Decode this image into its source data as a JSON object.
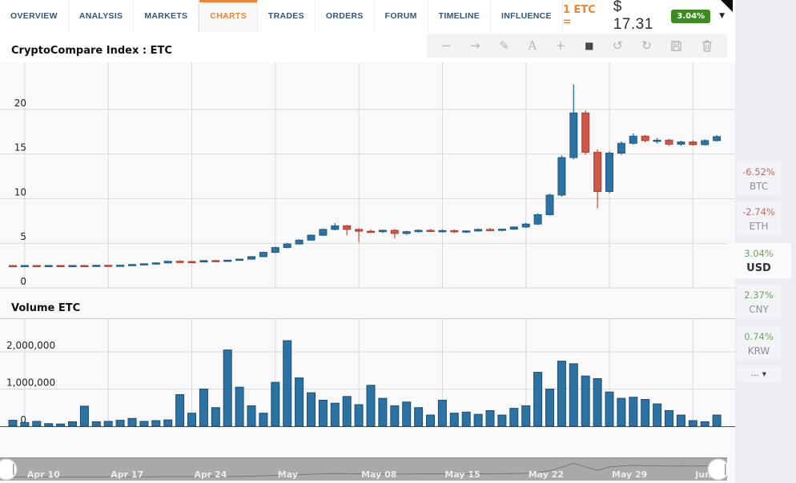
{
  "nav": {
    "tabs": [
      {
        "label": "OVERVIEW",
        "active": false
      },
      {
        "label": "ANALYSIS",
        "active": false
      },
      {
        "label": "MARKETS",
        "active": false
      },
      {
        "label": "CHARTS",
        "active": true
      },
      {
        "label": "TRADES",
        "active": false
      },
      {
        "label": "ORDERS",
        "active": false
      },
      {
        "label": "FORUM",
        "active": false
      },
      {
        "label": "TIMELINE",
        "active": false
      },
      {
        "label": "INFLUENCE",
        "active": false
      }
    ],
    "price_prefix": "1 ETC =",
    "price_value": "$ 17.31",
    "change_badge": "3.04%",
    "accent_color": "#ef8432",
    "badge_color": "#3e8b1f"
  },
  "toolbar": {
    "icons": [
      "minus",
      "arrow-right",
      "pencil",
      "text",
      "plus",
      "square",
      "undo",
      "redo",
      "save",
      "trash"
    ]
  },
  "sidebar": {
    "items": [
      {
        "change": "-6.52%",
        "symbol": "BTC",
        "direction": "down",
        "selected": false
      },
      {
        "change": "-2.74%",
        "symbol": "ETH",
        "direction": "down",
        "selected": false
      },
      {
        "change": "3.04%",
        "symbol": "USD",
        "direction": "up",
        "selected": true
      },
      {
        "change": "2.37%",
        "symbol": "CNY",
        "direction": "up",
        "selected": false
      },
      {
        "change": "0.74%",
        "symbol": "KRW",
        "direction": "up",
        "selected": false
      }
    ],
    "more_label": "...",
    "up_color": "#74a05a",
    "down_color": "#bd6a6a"
  },
  "chart_data": [
    {
      "type": "candlestick",
      "title": "CryptoCompare Index : ETC",
      "ylabel": "",
      "ylim": [
        0,
        24.6
      ],
      "y_ticks": [
        0,
        5,
        10,
        15,
        20
      ],
      "y_tick_labels": [
        "0",
        "5",
        "10",
        "15",
        "20"
      ],
      "x_tick_labels": [
        "Apr 10",
        "Apr 17",
        "Apr 24",
        "May",
        "May 08",
        "May 15",
        "May 22",
        "May 29",
        "Jun"
      ],
      "week_indices": [
        1,
        8,
        15,
        22,
        29,
        36,
        43,
        50,
        57
      ],
      "grid": true,
      "up_color": "#2c73a4",
      "down_color": "#d0564a",
      "ohlc": [
        [
          2.5,
          2.56,
          2.42,
          2.46
        ],
        [
          2.46,
          2.53,
          2.4,
          2.51
        ],
        [
          2.51,
          2.56,
          2.44,
          2.47
        ],
        [
          2.47,
          2.53,
          2.42,
          2.51
        ],
        [
          2.51,
          2.55,
          2.44,
          2.48
        ],
        [
          2.48,
          2.53,
          2.42,
          2.51
        ],
        [
          2.51,
          2.57,
          2.45,
          2.48
        ],
        [
          2.48,
          2.55,
          2.44,
          2.53
        ],
        [
          2.53,
          2.58,
          2.46,
          2.49
        ],
        [
          2.49,
          2.56,
          2.44,
          2.54
        ],
        [
          2.54,
          2.66,
          2.5,
          2.62
        ],
        [
          2.62,
          2.74,
          2.58,
          2.7
        ],
        [
          2.7,
          2.84,
          2.66,
          2.8
        ],
        [
          2.8,
          3.02,
          2.76,
          2.98
        ],
        [
          2.98,
          3.1,
          2.88,
          2.95
        ],
        [
          2.95,
          3.04,
          2.84,
          2.9
        ],
        [
          2.9,
          3.12,
          2.86,
          3.06
        ],
        [
          3.06,
          3.16,
          2.96,
          3.02
        ],
        [
          3.02,
          3.14,
          2.96,
          3.1
        ],
        [
          3.1,
          3.28,
          3.04,
          3.22
        ],
        [
          3.22,
          3.55,
          3.16,
          3.5
        ],
        [
          3.5,
          4.05,
          3.44,
          3.98
        ],
        [
          3.98,
          4.6,
          3.9,
          4.52
        ],
        [
          4.52,
          5.05,
          4.45,
          4.92
        ],
        [
          4.92,
          5.45,
          4.85,
          5.35
        ],
        [
          5.35,
          6.0,
          5.28,
          5.9
        ],
        [
          5.9,
          6.65,
          5.82,
          6.55
        ],
        [
          6.55,
          7.25,
          6.45,
          6.95
        ],
        [
          6.95,
          7.05,
          5.9,
          6.55
        ],
        [
          6.55,
          6.7,
          5.1,
          6.35
        ],
        [
          6.35,
          6.55,
          6.2,
          6.3
        ],
        [
          6.3,
          6.52,
          6.15,
          6.45
        ],
        [
          6.45,
          6.6,
          5.55,
          6.1
        ],
        [
          6.1,
          6.4,
          5.95,
          6.3
        ],
        [
          6.3,
          6.55,
          6.2,
          6.45
        ],
        [
          6.45,
          6.6,
          6.25,
          6.35
        ],
        [
          6.35,
          6.55,
          6.2,
          6.42
        ],
        [
          6.42,
          6.55,
          6.15,
          6.28
        ],
        [
          6.28,
          6.45,
          6.15,
          6.38
        ],
        [
          6.38,
          6.65,
          6.3,
          6.55
        ],
        [
          6.55,
          6.7,
          6.35,
          6.45
        ],
        [
          6.45,
          6.65,
          6.35,
          6.58
        ],
        [
          6.58,
          6.9,
          6.5,
          6.82
        ],
        [
          6.82,
          7.3,
          6.72,
          7.15
        ],
        [
          7.15,
          8.35,
          7.05,
          8.2
        ],
        [
          8.2,
          10.55,
          8.1,
          10.4
        ],
        [
          10.4,
          14.85,
          10.2,
          14.6
        ],
        [
          14.6,
          22.8,
          14.4,
          19.6
        ],
        [
          19.6,
          19.9,
          14.9,
          15.2
        ],
        [
          15.2,
          15.5,
          8.9,
          10.8
        ],
        [
          10.8,
          15.3,
          10.6,
          15.1
        ],
        [
          15.1,
          16.4,
          14.9,
          16.2
        ],
        [
          16.2,
          17.3,
          16.05,
          17.0
        ],
        [
          17.0,
          17.15,
          16.3,
          16.5
        ],
        [
          16.5,
          16.8,
          16.2,
          16.55
        ],
        [
          16.55,
          16.7,
          15.9,
          16.1
        ],
        [
          16.1,
          16.5,
          15.9,
          16.35
        ],
        [
          16.35,
          16.55,
          15.95,
          16.05
        ],
        [
          16.05,
          16.65,
          15.95,
          16.5
        ],
        [
          16.5,
          17.1,
          16.4,
          16.95
        ]
      ]
    },
    {
      "type": "bar",
      "title": "Volume ETC",
      "ylim": [
        0,
        2800000
      ],
      "y_ticks": [
        0,
        1000000,
        2000000
      ],
      "y_tick_labels": [
        "0",
        "1,000,000",
        "2,000,000"
      ],
      "bar_color": "#2c73a4",
      "values": [
        160000,
        100000,
        130000,
        70000,
        60000,
        120000,
        540000,
        120000,
        130000,
        160000,
        210000,
        130000,
        150000,
        170000,
        850000,
        350000,
        1000000,
        500000,
        2050000,
        1050000,
        550000,
        350000,
        1180000,
        2300000,
        1300000,
        900000,
        700000,
        620000,
        800000,
        580000,
        1100000,
        750000,
        550000,
        650000,
        500000,
        300000,
        700000,
        350000,
        380000,
        320000,
        420000,
        300000,
        480000,
        550000,
        1450000,
        1000000,
        1750000,
        1680000,
        1350000,
        1280000,
        920000,
        750000,
        780000,
        720000,
        600000,
        420000,
        300000,
        150000,
        120000,
        300000
      ]
    }
  ]
}
